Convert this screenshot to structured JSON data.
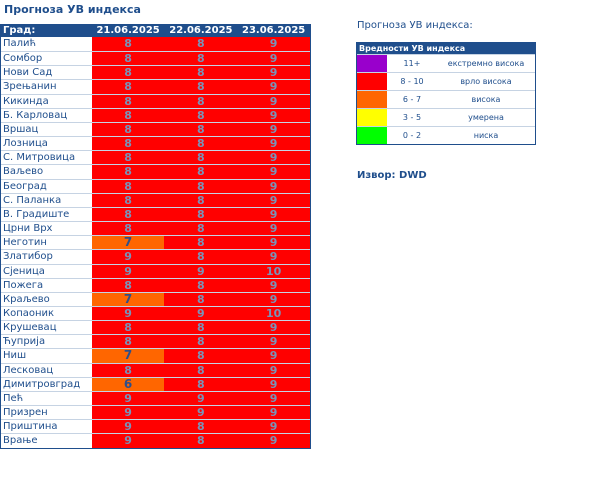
{
  "page": {
    "title": "Прогноза УВ индекса"
  },
  "table": {
    "header": {
      "city": "Град:",
      "dates": [
        "21.06.2025",
        "22.06.2025",
        "23.06.2025"
      ]
    },
    "rows": [
      {
        "city": "Палић",
        "values": [
          "8",
          "8",
          "9"
        ]
      },
      {
        "city": "Сомбор",
        "values": [
          "8",
          "8",
          "9"
        ]
      },
      {
        "city": "Нови Сад",
        "values": [
          "8",
          "8",
          "9"
        ]
      },
      {
        "city": "Зрењанин",
        "values": [
          "8",
          "8",
          "9"
        ]
      },
      {
        "city": "Кикинда",
        "values": [
          "8",
          "8",
          "9"
        ]
      },
      {
        "city": "Б. Карловац",
        "values": [
          "8",
          "8",
          "9"
        ]
      },
      {
        "city": "Вршац",
        "values": [
          "8",
          "8",
          "9"
        ]
      },
      {
        "city": "Лозница",
        "values": [
          "8",
          "8",
          "9"
        ]
      },
      {
        "city": "С. Митровица",
        "values": [
          "8",
          "8",
          "9"
        ]
      },
      {
        "city": "Ваљево",
        "values": [
          "8",
          "8",
          "9"
        ]
      },
      {
        "city": "Београд",
        "values": [
          "8",
          "8",
          "9"
        ]
      },
      {
        "city": "С. Паланка",
        "values": [
          "8",
          "8",
          "9"
        ]
      },
      {
        "city": "В. Градиште",
        "values": [
          "8",
          "8",
          "9"
        ]
      },
      {
        "city": "Црни Врх",
        "values": [
          "8",
          "8",
          "9"
        ]
      },
      {
        "city": "Неготин",
        "values": [
          "7",
          "8",
          "9"
        ]
      },
      {
        "city": "Златибор",
        "values": [
          "9",
          "8",
          "9"
        ]
      },
      {
        "city": "Сјеница",
        "values": [
          "9",
          "9",
          "10"
        ]
      },
      {
        "city": "Пожега",
        "values": [
          "8",
          "8",
          "9"
        ]
      },
      {
        "city": "Краљево",
        "values": [
          "7",
          "8",
          "9"
        ]
      },
      {
        "city": "Копаоник",
        "values": [
          "9",
          "9",
          "10"
        ]
      },
      {
        "city": "Крушевац",
        "values": [
          "8",
          "8",
          "9"
        ]
      },
      {
        "city": "Ћуприја",
        "values": [
          "8",
          "8",
          "9"
        ]
      },
      {
        "city": "Ниш",
        "values": [
          "7",
          "8",
          "9"
        ]
      },
      {
        "city": "Лесковац",
        "values": [
          "8",
          "8",
          "9"
        ]
      },
      {
        "city": "Димитровград",
        "values": [
          "6",
          "8",
          "9"
        ]
      },
      {
        "city": "Пећ",
        "values": [
          "9",
          "9",
          "9"
        ]
      },
      {
        "city": "Призрен",
        "values": [
          "9",
          "9",
          "9"
        ]
      },
      {
        "city": "Приштина",
        "values": [
          "9",
          "8",
          "9"
        ]
      },
      {
        "city": "Врање",
        "values": [
          "9",
          "8",
          "9"
        ]
      }
    ]
  },
  "legend": {
    "title": "Прогноза УВ индекса:",
    "header": "Вредности УВ индекса",
    "rows": [
      {
        "color": "#9900cc",
        "range": "11+",
        "label": "екстремно висока"
      },
      {
        "color": "#ff0000",
        "range": "8 - 10",
        "label": "врло висока"
      },
      {
        "color": "#ff6600",
        "range": "6 - 7",
        "label": "висока"
      },
      {
        "color": "#ffff00",
        "range": "3 - 5",
        "label": "умерена"
      },
      {
        "color": "#00ff00",
        "range": "0 - 2",
        "label": "ниска"
      }
    ]
  },
  "source": "Извор: DWD"
}
